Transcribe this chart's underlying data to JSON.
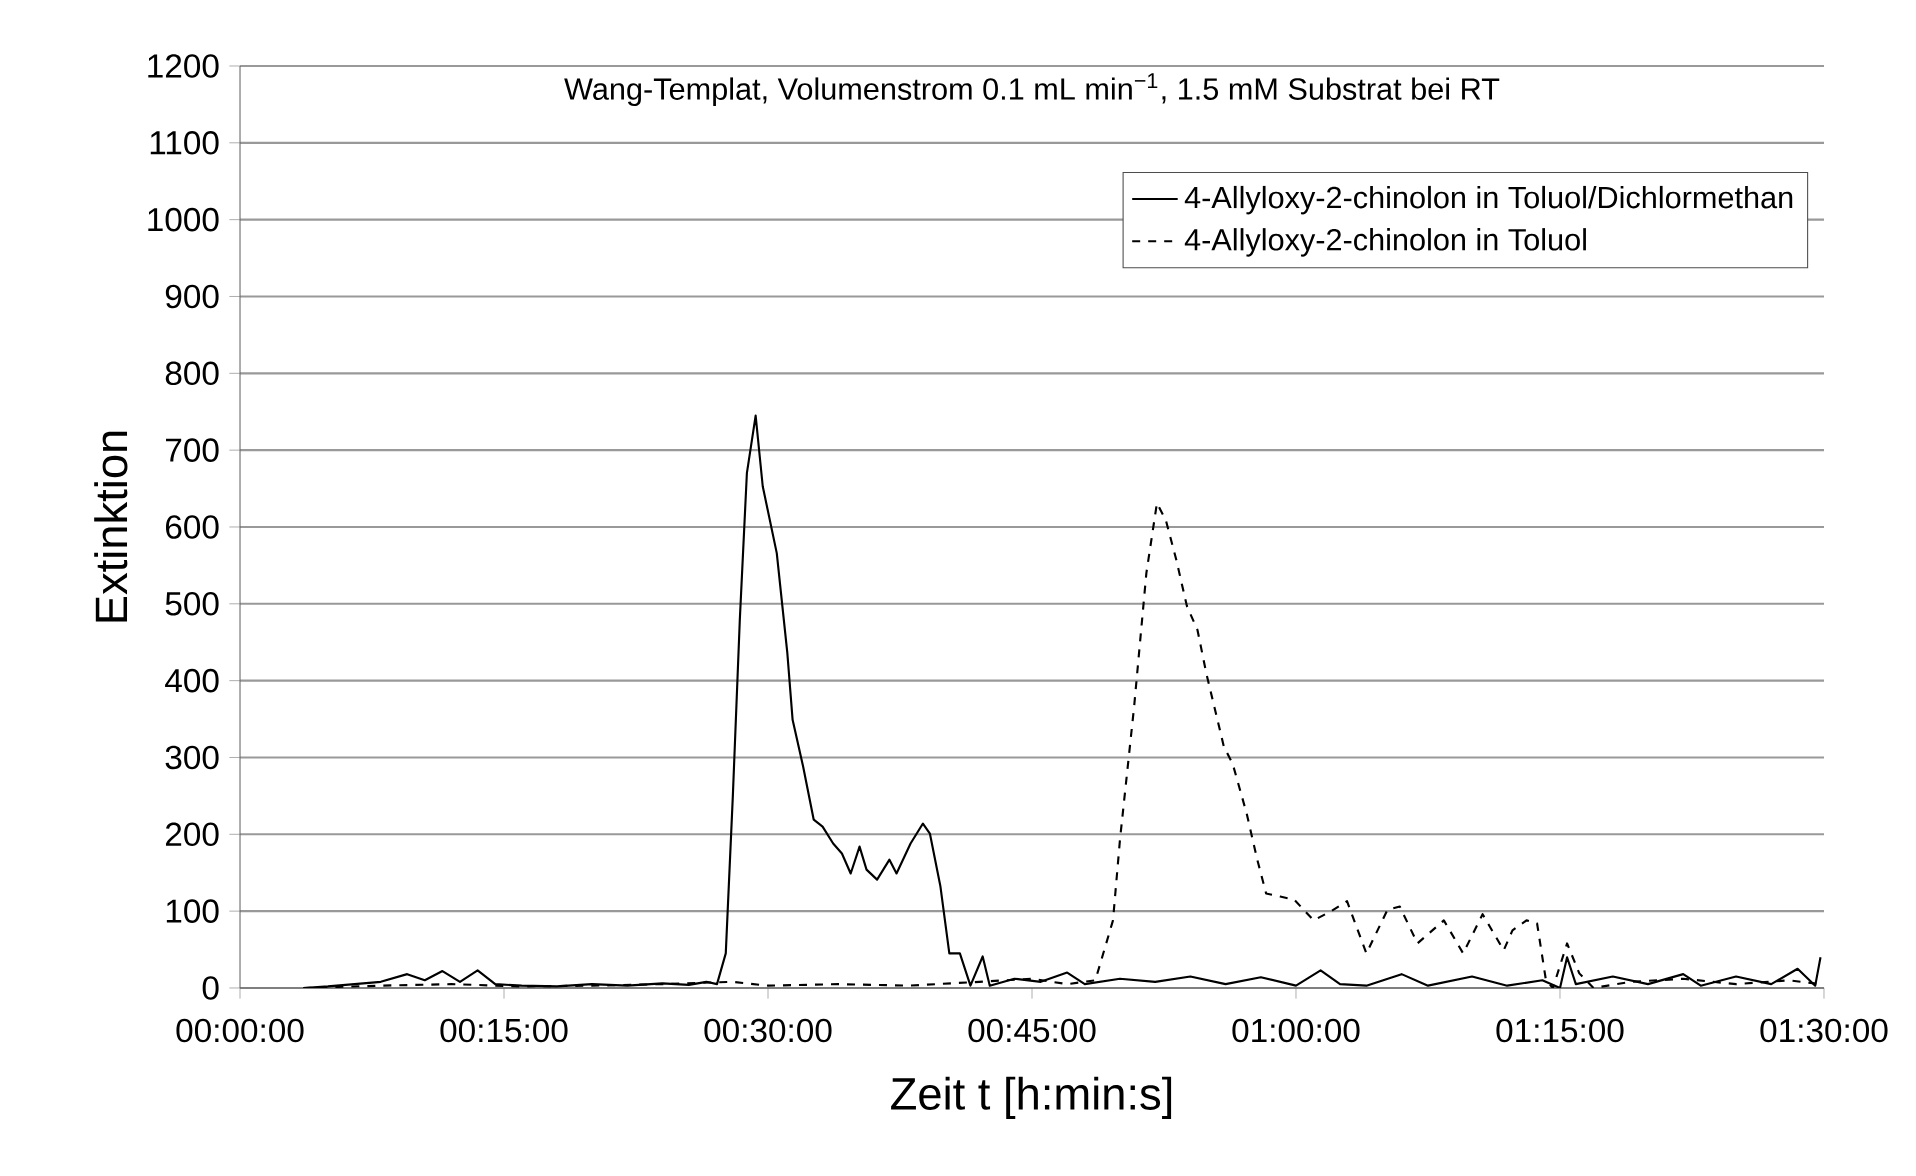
{
  "chart_data": {
    "type": "line",
    "title": "Wang-Templat, Volumenstrom 0.1 mL min$^{−1}$, 1.5 mM Substrat bei RT",
    "xlabel": "Zeit t [h:min:s]",
    "ylabel": "Extinktion",
    "xlim": [
      0,
      1.5
    ],
    "xticks": [
      {
        "value": 0,
        "label": "00:00:00"
      },
      {
        "value": 0.25,
        "label": "00:15:00"
      },
      {
        "value": 0.5,
        "label": "00:30:00"
      },
      {
        "value": 0.75,
        "label": "00:45:00"
      },
      {
        "value": 1.0,
        "label": "01:00:00"
      },
      {
        "value": 1.25,
        "label": "01:15:00"
      },
      {
        "value": 1.5,
        "label": "01:30:00"
      }
    ],
    "ylim": [
      0,
      1200
    ],
    "yticks": [
      0,
      100,
      200,
      300,
      400,
      500,
      600,
      700,
      800,
      900,
      1000,
      1100,
      1200
    ],
    "grid": "y",
    "legend": "top right",
    "series": [
      {
        "name": "4-Allyloxy-2-chinolon in Toluol/Dichlormethan",
        "color": "#000000",
        "line_style": "solid",
        "x": [
          0.06,
          0.0833,
          0.1083,
          0.1333,
          0.1583,
          0.175,
          0.1917,
          0.2083,
          0.225,
          0.2417,
          0.2667,
          0.3,
          0.3333,
          0.3667,
          0.4,
          0.425,
          0.4417,
          0.4517,
          0.46,
          0.4667,
          0.4733,
          0.48,
          0.4883,
          0.495,
          0.5083,
          0.5183,
          0.5233,
          0.5333,
          0.5433,
          0.5517,
          0.5617,
          0.57,
          0.5783,
          0.5867,
          0.5933,
          0.6033,
          0.615,
          0.6217,
          0.635,
          0.6467,
          0.6533,
          0.6633,
          0.6717,
          0.6817,
          0.6917,
          0.7033,
          0.71,
          0.7333,
          0.7583,
          0.7833,
          0.8,
          0.8333,
          0.8667,
          0.9,
          0.9333,
          0.9667,
          1.0,
          1.0233,
          1.0417,
          1.0667,
          1.1,
          1.125,
          1.1667,
          1.2,
          1.2333,
          1.25,
          1.2567,
          1.265,
          1.3,
          1.3333,
          1.3667,
          1.3833,
          1.4167,
          1.45,
          1.475,
          1.4917,
          1.4967
        ],
        "values": [
          0,
          2,
          5,
          8,
          18,
          10,
          22,
          8,
          23,
          5,
          3,
          2,
          5,
          3,
          6,
          4,
          8,
          5,
          45,
          250,
          479,
          670,
          745,
          653,
          566,
          436,
          349,
          288,
          219,
          210,
          188,
          175,
          149,
          184,
          154,
          141,
          167,
          149,
          188,
          214,
          201,
          132,
          45,
          45,
          3,
          41,
          3,
          12,
          8,
          20,
          5,
          12,
          8,
          15,
          5,
          14,
          3,
          23,
          5,
          3,
          18,
          3,
          15,
          3,
          10,
          0,
          40,
          5,
          15,
          5,
          18,
          3,
          15,
          5,
          25,
          3,
          40
        ]
      },
      {
        "name": "4-Allyloxy-2-chinolon in Toluol",
        "color": "#000000",
        "line_style": "dashed",
        "x": [
          0.06,
          0.1333,
          0.2,
          0.2667,
          0.3333,
          0.4,
          0.4667,
          0.5,
          0.5667,
          0.6333,
          0.7,
          0.75,
          0.7833,
          0.81,
          0.8267,
          0.8333,
          0.8467,
          0.8583,
          0.8683,
          0.8767,
          0.8867,
          0.8967,
          0.9067,
          0.915,
          0.9317,
          0.94,
          0.9533,
          0.9633,
          0.9717,
          0.985,
          0.9983,
          1.0167,
          1.0333,
          1.0483,
          1.0667,
          1.0867,
          1.0983,
          1.115,
          1.14,
          1.1583,
          1.1767,
          1.1967,
          1.205,
          1.2183,
          1.2283,
          1.2367,
          1.2433,
          1.2567,
          1.2683,
          1.2817,
          1.3167,
          1.3667,
          1.4167,
          1.4667,
          1.4967
        ],
        "values": [
          0,
          3,
          5,
          2,
          3,
          5,
          8,
          3,
          5,
          3,
          8,
          12,
          5,
          10,
          88,
          193,
          366,
          540,
          631,
          609,
          557,
          497,
          466,
          410,
          314,
          292,
          227,
          167,
          123,
          119,
          115,
          88,
          100,
          113,
          45,
          102,
          106,
          58,
          88,
          45,
          96,
          49,
          75,
          88,
          84,
          10,
          0,
          58,
          19,
          0,
          8,
          12,
          5,
          10,
          5
        ]
      }
    ]
  }
}
